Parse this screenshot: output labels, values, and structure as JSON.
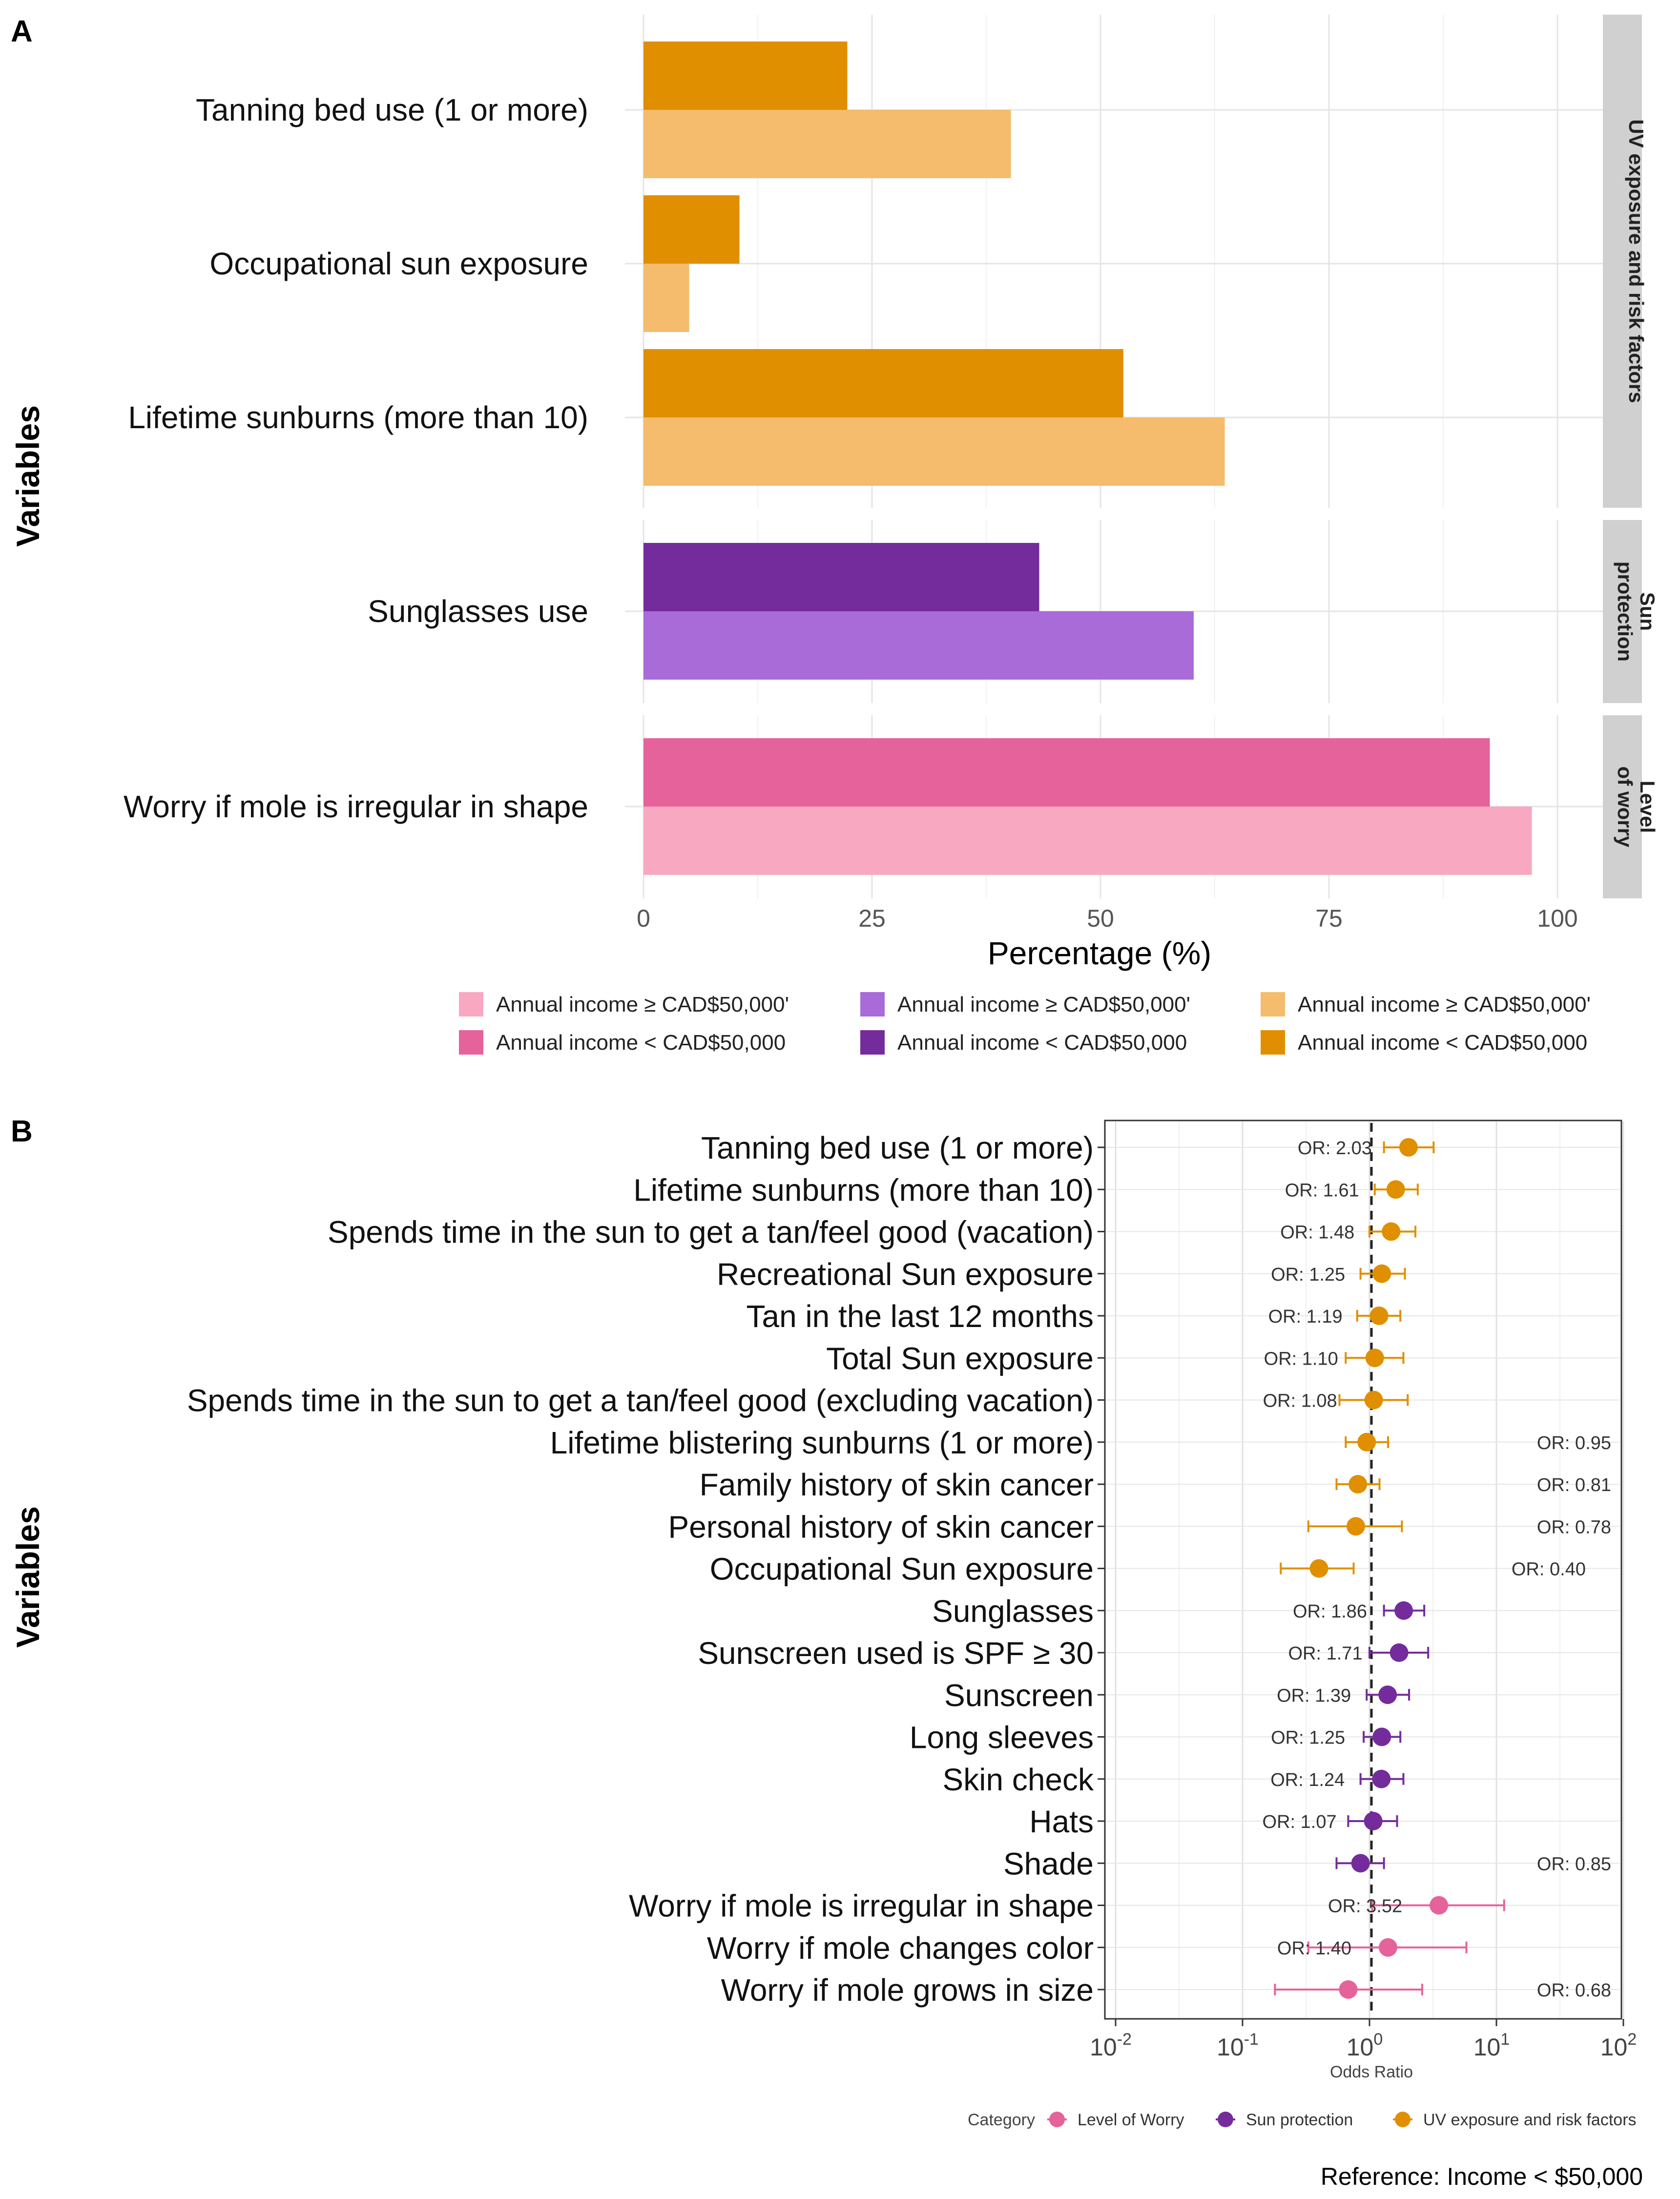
{
  "chart_data": [
    {
      "panel_label": "A",
      "type": "bar",
      "orientation": "horizontal",
      "xlabel": "Percentage (%)",
      "ylabel": "Variables",
      "xlim": [
        0,
        100
      ],
      "xticks": [
        "0",
        "25",
        "50",
        "75",
        "100"
      ],
      "facets": [
        {
          "name": "UV exposure and risk factors",
          "strip_lines": [
            "UV exposure and risk factors"
          ],
          "categories": [
            "Tanning bed use (1 or more)",
            "Occupational sun exposure",
            "Lifetime sunburns (more than 10)"
          ],
          "series": [
            {
              "name": "Annual income < CAD$50,000",
              "color": "#E08F00",
              "values": [
                22.3,
                10.5,
                52.5
              ]
            },
            {
              "name": "Annual income ≥ CAD$50,000'",
              "color": "#F4BC6C",
              "values": [
                40.2,
                5.0,
                63.6
              ]
            }
          ]
        },
        {
          "name": "Sun protection",
          "strip_lines": [
            "Sun",
            "protection"
          ],
          "categories": [
            "Sunglasses use"
          ],
          "series": [
            {
              "name": "Annual income < CAD$50,000",
              "color": "#742C9C",
              "values": [
                43.3
              ]
            },
            {
              "name": "Annual income ≥ CAD$50,000'",
              "color": "#A86BD8",
              "values": [
                60.2
              ]
            }
          ]
        },
        {
          "name": "Level of worry",
          "strip_lines": [
            "Level",
            "of worry"
          ],
          "categories": [
            "Worry if mole is irregular in shape"
          ],
          "series": [
            {
              "name": "Annual income < CAD$50,000",
              "color": "#E5639A",
              "values": [
                92.6
              ]
            },
            {
              "name": "Annual income ≥ CAD$50,000'",
              "color": "#F9A8C2",
              "values": [
                97.2
              ]
            }
          ]
        }
      ],
      "legend": [
        {
          "label": "Annual income ≥ CAD$50,000'",
          "color": "#F9A8C2"
        },
        {
          "label": "Annual income ≥ CAD$50,000'",
          "color": "#A86BD8"
        },
        {
          "label": "Annual income ≥ CAD$50,000'",
          "color": "#F4BC6C"
        },
        {
          "label": "Annual income < CAD$50,000",
          "color": "#E5639A"
        },
        {
          "label": "Annual income < CAD$50,000",
          "color": "#742C9C"
        },
        {
          "label": "Annual income < CAD$50,000",
          "color": "#E08F00"
        }
      ]
    },
    {
      "panel_label": "B",
      "type": "scatter",
      "subtype": "forest_plot",
      "xscale": "log10",
      "xlabel": "Odds Ratio",
      "ylabel": "Variables",
      "xlim": [
        0.01,
        100
      ],
      "xticks": [
        {
          "base": "10",
          "exp": "-2"
        },
        {
          "base": "10",
          "exp": "-1"
        },
        {
          "base": "10",
          "exp": "0"
        },
        {
          "base": "10",
          "exp": "1"
        },
        {
          "base": "10",
          "exp": "2"
        }
      ],
      "reference_line": 1,
      "legend_title": "Category",
      "legend": [
        {
          "label": "Level of Worry",
          "color": "#E5639A"
        },
        {
          "label": "Sun protection",
          "color": "#742C9C"
        },
        {
          "label": "UV exposure and risk factors",
          "color": "#E08F00"
        }
      ],
      "caption": "Reference: Income < $50,000",
      "rows": [
        {
          "label": "Tanning bed use (1 or more)",
          "or": 2.03,
          "ci": [
            1.3,
            3.2
          ],
          "or_text": "OR: 2.03",
          "category": "UV exposure and risk factors"
        },
        {
          "label": "Lifetime sunburns (more than 10)",
          "or": 1.61,
          "ci": [
            1.1,
            2.4
          ],
          "or_text": "OR: 1.61",
          "category": "UV exposure and risk factors"
        },
        {
          "label": "Spends time in the sun to get a tan/feel good (vacation)",
          "or": 1.48,
          "ci": [
            1.0,
            2.3
          ],
          "or_text": "OR: 1.48",
          "category": "UV exposure and risk factors"
        },
        {
          "label": "Recreational Sun exposure",
          "or": 1.25,
          "ci": [
            0.85,
            1.9
          ],
          "or_text": "OR: 1.25",
          "category": "UV exposure and risk factors"
        },
        {
          "label": "Tan in the last 12 months",
          "or": 1.19,
          "ci": [
            0.8,
            1.75
          ],
          "or_text": "OR: 1.19",
          "category": "UV exposure and risk factors"
        },
        {
          "label": "Total Sun exposure",
          "or": 1.1,
          "ci": [
            0.65,
            1.85
          ],
          "or_text": "OR: 1.10",
          "category": "UV exposure and risk factors"
        },
        {
          "label": "Spends time in the sun to get a tan/feel good (excluding vacation)",
          "or": 1.08,
          "ci": [
            0.58,
            2.0
          ],
          "or_text": "OR: 1.08",
          "category": "UV exposure and risk factors"
        },
        {
          "label": "Lifetime blistering sunburns (1 or more)",
          "or": 0.95,
          "ci": [
            0.65,
            1.4
          ],
          "or_text": "OR: 0.95",
          "category": "UV exposure and risk factors"
        },
        {
          "label": "Family history of skin cancer",
          "or": 0.81,
          "ci": [
            0.55,
            1.2
          ],
          "or_text": "OR: 0.81",
          "category": "UV exposure and risk factors"
        },
        {
          "label": "Personal history of skin cancer",
          "or": 0.78,
          "ci": [
            0.33,
            1.8
          ],
          "or_text": "OR: 0.78",
          "category": "UV exposure and risk factors"
        },
        {
          "label": "Occupational Sun exposure",
          "or": 0.4,
          "ci": [
            0.2,
            0.75
          ],
          "or_text": "OR: 0.40",
          "category": "UV exposure and risk factors"
        },
        {
          "label": "Sunglasses",
          "or": 1.86,
          "ci": [
            1.3,
            2.7
          ],
          "or_text": "OR: 1.86",
          "category": "Sun protection"
        },
        {
          "label": "Sunscreen used is SPF ≥ 30",
          "or": 1.71,
          "ci": [
            1.0,
            2.9
          ],
          "or_text": "OR: 1.71",
          "category": "Sun protection"
        },
        {
          "label": "Sunscreen",
          "or": 1.39,
          "ci": [
            0.95,
            2.05
          ],
          "or_text": "OR: 1.39",
          "category": "Sun protection"
        },
        {
          "label": "Long sleeves",
          "or": 1.25,
          "ci": [
            0.9,
            1.75
          ],
          "or_text": "OR: 1.25",
          "category": "Sun protection"
        },
        {
          "label": "Skin check",
          "or": 1.24,
          "ci": [
            0.85,
            1.85
          ],
          "or_text": "OR: 1.24",
          "category": "Sun protection"
        },
        {
          "label": "Hats",
          "or": 1.07,
          "ci": [
            0.68,
            1.65
          ],
          "or_text": "OR: 1.07",
          "category": "Sun protection"
        },
        {
          "label": "Shade",
          "or": 0.85,
          "ci": [
            0.55,
            1.3
          ],
          "or_text": "OR: 0.85",
          "category": "Sun protection"
        },
        {
          "label": "Worry if mole is irregular in shape",
          "or": 3.52,
          "ci": [
            1.05,
            11.5
          ],
          "or_text": "OR: 3.52",
          "category": "Level of Worry"
        },
        {
          "label": "Worry if mole changes color",
          "or": 1.4,
          "ci": [
            0.33,
            5.8
          ],
          "or_text": "OR: 1.40",
          "category": "Level of Worry"
        },
        {
          "label": "Worry if mole grows in size",
          "or": 0.68,
          "ci": [
            0.18,
            2.6
          ],
          "or_text": "OR: 0.68",
          "category": "Level of Worry"
        }
      ]
    }
  ]
}
